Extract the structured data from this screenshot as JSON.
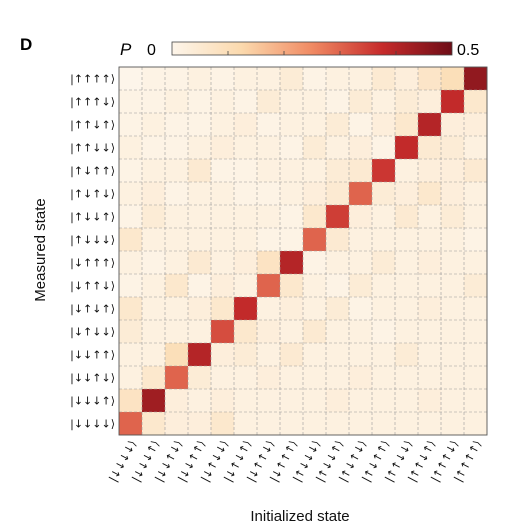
{
  "panel_label": "D",
  "colorbar": {
    "symbol": "P",
    "min_label": "0",
    "max_label": "0.5",
    "min": 0,
    "max": 0.5,
    "colors": [
      "#fdf5ea",
      "#fbd9ad",
      "#f08a63",
      "#c62b2b",
      "#6e0d17"
    ]
  },
  "chart_data": {
    "type": "heatmap",
    "xlabel": "Initialized state",
    "ylabel": "Measured state",
    "x_categories": [
      "|↓↓↓↓⟩",
      "|↓↓↓↑⟩",
      "|↓↓↑↓⟩",
      "|↓↓↑↑⟩",
      "|↓↑↓↓⟩",
      "|↓↑↓↑⟩",
      "|↓↑↑↓⟩",
      "|↓↑↑↑⟩",
      "|↑↓↓↓⟩",
      "|↑↓↓↑⟩",
      "|↑↓↑↓⟩",
      "|↑↓↑↑⟩",
      "|↑↑↓↓⟩",
      "|↑↑↓↑⟩",
      "|↑↑↑↓⟩",
      "|↑↑↑↑⟩"
    ],
    "y_categories": [
      "|↑↑↑↑⟩",
      "|↑↑↑↓⟩",
      "|↑↑↓↑⟩",
      "|↑↑↓↓⟩",
      "|↑↓↑↑⟩",
      "|↑↓↑↓⟩",
      "|↑↓↓↑⟩",
      "|↑↓↓↓⟩",
      "|↓↑↑↑⟩",
      "|↓↑↑↓⟩",
      "|↓↑↓↑⟩",
      "|↓↑↓↓⟩",
      "|↓↓↑↑⟩",
      "|↓↓↑↓⟩",
      "|↓↓↓↑⟩",
      "|↓↓↓↓⟩"
    ],
    "zlim": [
      0,
      0.5
    ],
    "grid": true,
    "values": [
      [
        0.0,
        0.01,
        0.01,
        0.02,
        0.01,
        0.02,
        0.02,
        0.04,
        0.01,
        0.02,
        0.02,
        0.05,
        0.03,
        0.07,
        0.1,
        0.45
      ],
      [
        0.01,
        0.01,
        0.02,
        0.01,
        0.02,
        0.01,
        0.04,
        0.02,
        0.02,
        0.01,
        0.04,
        0.02,
        0.04,
        0.03,
        0.38,
        0.06
      ],
      [
        0.01,
        0.02,
        0.01,
        0.01,
        0.02,
        0.03,
        0.01,
        0.02,
        0.02,
        0.04,
        0.01,
        0.03,
        0.06,
        0.4,
        0.03,
        0.03
      ],
      [
        0.02,
        0.01,
        0.01,
        0.02,
        0.03,
        0.02,
        0.02,
        0.01,
        0.04,
        0.02,
        0.03,
        0.01,
        0.38,
        0.05,
        0.04,
        0.02
      ],
      [
        0.01,
        0.02,
        0.02,
        0.05,
        0.01,
        0.01,
        0.02,
        0.02,
        0.02,
        0.04,
        0.05,
        0.36,
        0.02,
        0.03,
        0.03,
        0.05
      ],
      [
        0.02,
        0.03,
        0.01,
        0.02,
        0.02,
        0.01,
        0.01,
        0.02,
        0.03,
        0.05,
        0.3,
        0.04,
        0.03,
        0.06,
        0.03,
        0.02
      ],
      [
        0.01,
        0.04,
        0.02,
        0.02,
        0.02,
        0.02,
        0.02,
        0.01,
        0.06,
        0.35,
        0.03,
        0.02,
        0.05,
        0.02,
        0.04,
        0.02
      ],
      [
        0.06,
        0.02,
        0.02,
        0.02,
        0.02,
        0.02,
        0.01,
        0.01,
        0.3,
        0.05,
        0.02,
        0.02,
        0.02,
        0.02,
        0.02,
        0.01
      ],
      [
        0.02,
        0.01,
        0.02,
        0.05,
        0.02,
        0.03,
        0.08,
        0.4,
        0.01,
        0.02,
        0.02,
        0.04,
        0.02,
        0.03,
        0.02,
        0.02
      ],
      [
        0.01,
        0.02,
        0.06,
        0.01,
        0.03,
        0.02,
        0.3,
        0.06,
        0.02,
        0.01,
        0.04,
        0.02,
        0.02,
        0.02,
        0.02,
        0.04
      ],
      [
        0.06,
        0.02,
        0.02,
        0.03,
        0.06,
        0.38,
        0.02,
        0.03,
        0.02,
        0.04,
        0.01,
        0.02,
        0.02,
        0.03,
        0.02,
        0.02
      ],
      [
        0.04,
        0.02,
        0.02,
        0.02,
        0.33,
        0.06,
        0.03,
        0.02,
        0.05,
        0.02,
        0.02,
        0.01,
        0.02,
        0.02,
        0.02,
        0.02
      ],
      [
        0.02,
        0.02,
        0.1,
        0.4,
        0.03,
        0.04,
        0.02,
        0.05,
        0.02,
        0.02,
        0.02,
        0.02,
        0.04,
        0.02,
        0.02,
        0.02
      ],
      [
        0.02,
        0.06,
        0.3,
        0.04,
        0.02,
        0.02,
        0.03,
        0.02,
        0.02,
        0.02,
        0.03,
        0.02,
        0.02,
        0.02,
        0.02,
        0.02
      ],
      [
        0.08,
        0.43,
        0.03,
        0.02,
        0.03,
        0.02,
        0.02,
        0.02,
        0.02,
        0.03,
        0.02,
        0.02,
        0.02,
        0.03,
        0.02,
        0.02
      ],
      [
        0.3,
        0.06,
        0.03,
        0.03,
        0.06,
        0.02,
        0.02,
        0.02,
        0.02,
        0.02,
        0.02,
        0.02,
        0.02,
        0.02,
        0.02,
        0.02
      ]
    ]
  }
}
